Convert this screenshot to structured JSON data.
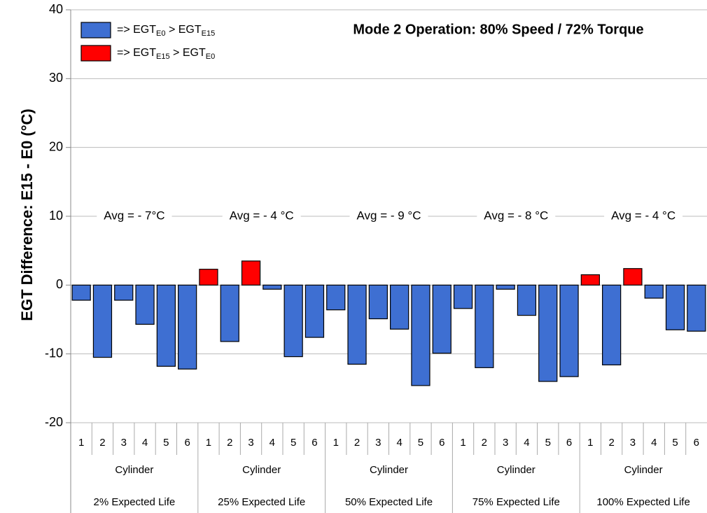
{
  "chart_data": {
    "type": "bar",
    "title": "Mode 2 Operation:  80% Speed / 72% Torque",
    "ylabel": "EGT Difference:  E15 - E0 (°C)",
    "ylim": [
      -20,
      40
    ],
    "yticks": [
      -20,
      -10,
      0,
      10,
      20,
      30,
      40
    ],
    "grid": true,
    "legend_position": "upper left",
    "series": [
      {
        "name_parts": [
          "=> EGT",
          "E0",
          " > EGT",
          "E15"
        ],
        "color": "#3e6fd2"
      },
      {
        "name_parts": [
          "=> EGT",
          "E15",
          " > EGT",
          "E0"
        ],
        "color": "#ff0000"
      }
    ],
    "groups": [
      {
        "label": "2% Expected Life",
        "sublabel": "Cylinder",
        "categories": [
          "1",
          "2",
          "3",
          "4",
          "5",
          "6"
        ],
        "values": [
          -2.2,
          -10.5,
          -2.2,
          -5.7,
          -11.8,
          -12.2
        ],
        "annotation": "Avg = - 7°C"
      },
      {
        "label": "25% Expected Life",
        "sublabel": "Cylinder",
        "categories": [
          "1",
          "2",
          "3",
          "4",
          "5",
          "6"
        ],
        "values": [
          2.3,
          -8.2,
          3.5,
          -0.6,
          -10.4,
          -7.6
        ],
        "annotation": "Avg = - 4 °C"
      },
      {
        "label": "50% Expected Life",
        "sublabel": "Cylinder",
        "categories": [
          "1",
          "2",
          "3",
          "4",
          "5",
          "6"
        ],
        "values": [
          -3.6,
          -11.5,
          -4.9,
          -6.4,
          -14.6,
          -9.9
        ],
        "annotation": "Avg = - 9 °C"
      },
      {
        "label": "75% Expected Life",
        "sublabel": "Cylinder",
        "categories": [
          "1",
          "2",
          "3",
          "4",
          "5",
          "6"
        ],
        "values": [
          -3.4,
          -12.0,
          -0.6,
          -4.4,
          -14.0,
          -13.3
        ],
        "annotation": "Avg = - 8 °C"
      },
      {
        "label": "100% Expected Life",
        "sublabel": "Cylinder",
        "categories": [
          "1",
          "2",
          "3",
          "4",
          "5",
          "6"
        ],
        "values": [
          1.5,
          -11.6,
          2.4,
          -1.9,
          -6.5,
          -6.7
        ],
        "annotation": "Avg = - 4 °C"
      }
    ]
  }
}
